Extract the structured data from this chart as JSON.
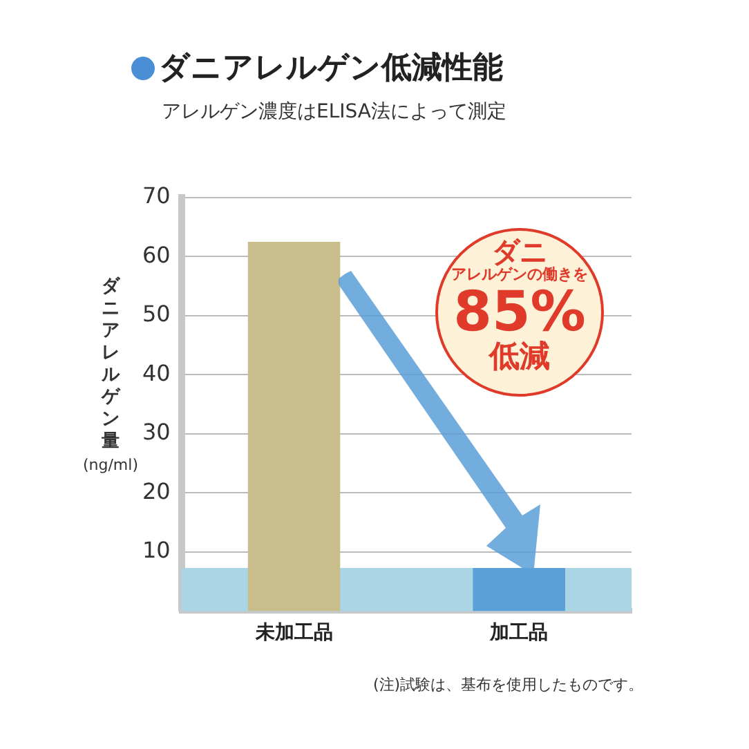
{
  "chart_data": {
    "type": "bar",
    "title": "ダニアレルゲン低減性能",
    "subtitle": "アレルゲン濃度はELISA法によって測定",
    "ylabel": "ダニアレルゲン量 (ng/ml)",
    "categories": [
      "未加工品",
      "加工品"
    ],
    "values": [
      62.5,
      7.3
    ],
    "colors": [
      "#c9bd8c",
      "#5b9fd8"
    ],
    "ylim": [
      0,
      70
    ],
    "yticks": [
      10,
      20,
      30,
      40,
      50,
      60,
      70
    ],
    "grid": "y",
    "bands": [
      {
        "axis": "y",
        "from": 0,
        "to": 7.3,
        "color": "#a9d5e5"
      }
    ],
    "annotations": [
      "ダニ",
      "アレルゲンの働きを",
      "85%",
      "低減",
      "(注)試験は、基布を使用したものです。"
    ]
  }
}
